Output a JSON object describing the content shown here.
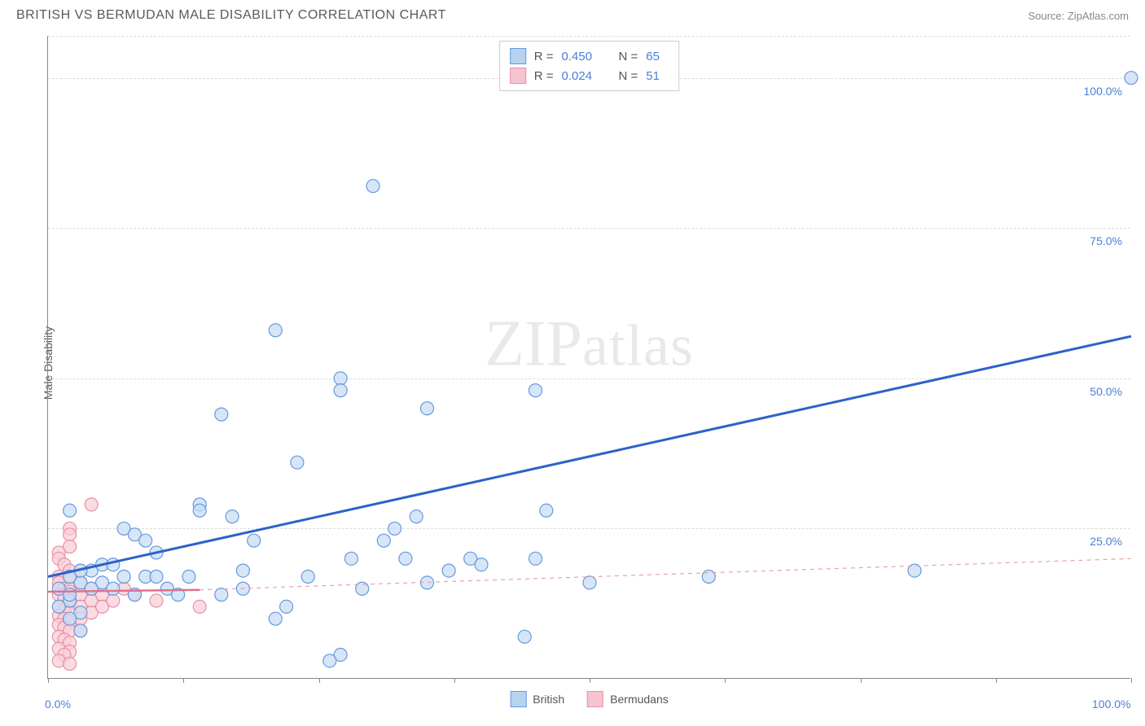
{
  "header": {
    "title": "BRITISH VS BERMUDAN MALE DISABILITY CORRELATION CHART",
    "source": "Source: ZipAtlas.com"
  },
  "ylabel": "Male Disability",
  "watermark_zip": "ZIP",
  "watermark_atlas": "atlas",
  "chart": {
    "type": "scatter",
    "xlim": [
      0,
      100
    ],
    "ylim": [
      0,
      107
    ],
    "x_ticks": [
      0,
      12.5,
      25,
      37.5,
      50,
      62.5,
      75,
      87.5,
      100
    ],
    "x_tick_labels_visible": {
      "0": "0.0%",
      "100": "100.0%"
    },
    "y_gridlines": [
      25,
      50,
      75,
      100
    ],
    "y_tick_labels": {
      "25": "25.0%",
      "50": "50.0%",
      "75": "75.0%",
      "100": "100.0%"
    },
    "background_color": "#ffffff",
    "grid_color": "#dddddd",
    "grid_dash": "4,4",
    "axis_color": "#888888",
    "marker_radius": 8,
    "marker_stroke_width": 1.2,
    "series": [
      {
        "name": "British",
        "label": "British",
        "fill": "#c8ddf4",
        "stroke": "#6699dd",
        "swatch_fill": "#b8d3f0",
        "swatch_border": "#6699dd",
        "R": "0.450",
        "N": "65",
        "trend": {
          "x1": 0,
          "y1": 17,
          "x2": 100,
          "y2": 57,
          "stroke": "#2c62c8",
          "width": 3,
          "dash": "none"
        },
        "points": [
          [
            100,
            100
          ],
          [
            30,
            82
          ],
          [
            21,
            58
          ],
          [
            27,
            50
          ],
          [
            27,
            48
          ],
          [
            35,
            45
          ],
          [
            45,
            48
          ],
          [
            16,
            44
          ],
          [
            23,
            36
          ],
          [
            14,
            29
          ],
          [
            14,
            28
          ],
          [
            17,
            27
          ],
          [
            2,
            28
          ],
          [
            7,
            25
          ],
          [
            8,
            24
          ],
          [
            9,
            23
          ],
          [
            10,
            21
          ],
          [
            19,
            23
          ],
          [
            46,
            28
          ],
          [
            34,
            27
          ],
          [
            39,
            20
          ],
          [
            40,
            19
          ],
          [
            45,
            20
          ],
          [
            28,
            20
          ],
          [
            31,
            23
          ],
          [
            32,
            25
          ],
          [
            33,
            20
          ],
          [
            50,
            16
          ],
          [
            61,
            17
          ],
          [
            80,
            18
          ],
          [
            44,
            7
          ],
          [
            27,
            4
          ],
          [
            26,
            3
          ],
          [
            22,
            12
          ],
          [
            21,
            10
          ],
          [
            5,
            16
          ],
          [
            6,
            15
          ],
          [
            7,
            17
          ],
          [
            8,
            14
          ],
          [
            9,
            17
          ],
          [
            10,
            17
          ],
          [
            11,
            15
          ],
          [
            12,
            14
          ],
          [
            13,
            17
          ],
          [
            4,
            18
          ],
          [
            3,
            16
          ],
          [
            2,
            13
          ],
          [
            2,
            14
          ],
          [
            3,
            11
          ],
          [
            4,
            15
          ],
          [
            5,
            19
          ],
          [
            6,
            19
          ],
          [
            2,
            17
          ],
          [
            1,
            15
          ],
          [
            1,
            12
          ],
          [
            2,
            10
          ],
          [
            3,
            8
          ],
          [
            3,
            18
          ],
          [
            16,
            14
          ],
          [
            18,
            15
          ],
          [
            18,
            18
          ],
          [
            24,
            17
          ],
          [
            29,
            15
          ],
          [
            35,
            16
          ],
          [
            37,
            18
          ]
        ]
      },
      {
        "name": "Bermudans",
        "label": "Bermudans",
        "fill": "#f7d0d8",
        "stroke": "#e890a5",
        "swatch_fill": "#f5c4cf",
        "swatch_border": "#e890a5",
        "R": "0.024",
        "N": "51",
        "trend_solid": {
          "x1": 0,
          "y1": 14.5,
          "x2": 14,
          "y2": 14.8,
          "stroke": "#e07090",
          "width": 2.5,
          "dash": "none"
        },
        "trend": {
          "x1": 14,
          "y1": 14.8,
          "x2": 100,
          "y2": 20,
          "stroke": "#e8a0b0",
          "width": 1.2,
          "dash": "5,5"
        },
        "points": [
          [
            4,
            29
          ],
          [
            2,
            25
          ],
          [
            2,
            24
          ],
          [
            2,
            22
          ],
          [
            1,
            21
          ],
          [
            1,
            20
          ],
          [
            1.5,
            19
          ],
          [
            2,
            18
          ],
          [
            2,
            17
          ],
          [
            1,
            17
          ],
          [
            1,
            16
          ],
          [
            1.5,
            15
          ],
          [
            2,
            15
          ],
          [
            2,
            14.5
          ],
          [
            1,
            14
          ],
          [
            1.5,
            13.5
          ],
          [
            2,
            13
          ],
          [
            2,
            12.5
          ],
          [
            1,
            12
          ],
          [
            1.5,
            11.5
          ],
          [
            2,
            11
          ],
          [
            1,
            10.5
          ],
          [
            1.5,
            10
          ],
          [
            2,
            9.5
          ],
          [
            1,
            9
          ],
          [
            1.5,
            8.5
          ],
          [
            2,
            8
          ],
          [
            1,
            7
          ],
          [
            1.5,
            6.5
          ],
          [
            2,
            6
          ],
          [
            1,
            5
          ],
          [
            2,
            4.5
          ],
          [
            1.5,
            4
          ],
          [
            1,
            3
          ],
          [
            2,
            2.5
          ],
          [
            3,
            16
          ],
          [
            3,
            14
          ],
          [
            3,
            12
          ],
          [
            3,
            10
          ],
          [
            3,
            8
          ],
          [
            4,
            15
          ],
          [
            4,
            13
          ],
          [
            4,
            11
          ],
          [
            5,
            14
          ],
          [
            5,
            12
          ],
          [
            6,
            13
          ],
          [
            7,
            15
          ],
          [
            8,
            14
          ],
          [
            10,
            13
          ],
          [
            14,
            12
          ],
          [
            3,
            18
          ]
        ]
      }
    ]
  },
  "legend_bottom": [
    {
      "label": "British",
      "fill": "#b8d3f0",
      "border": "#6699dd"
    },
    {
      "label": "Bermudans",
      "fill": "#f5c4cf",
      "border": "#e890a5"
    }
  ]
}
